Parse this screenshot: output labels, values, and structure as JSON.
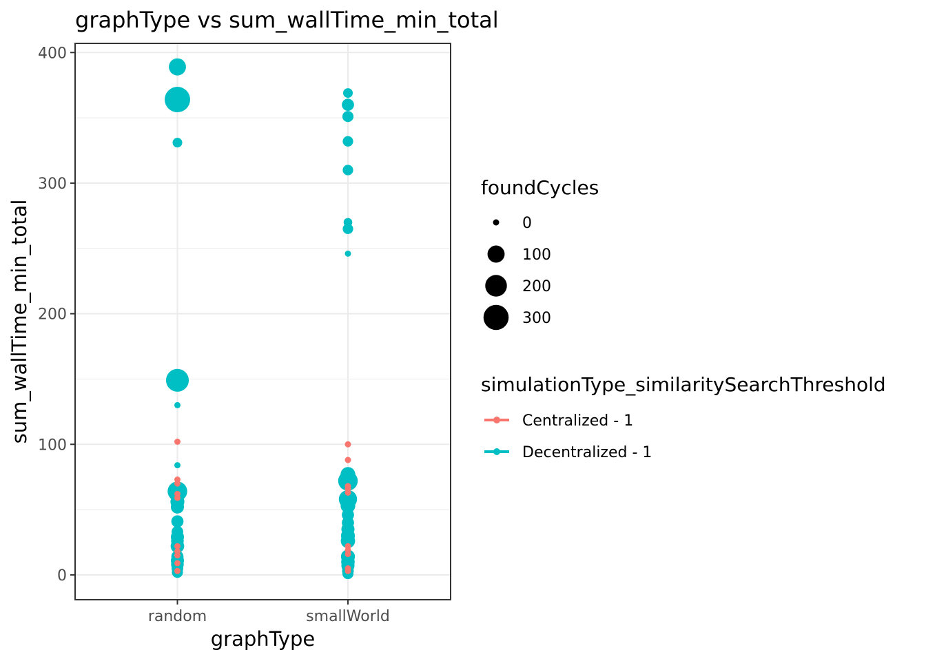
{
  "chart_data": {
    "type": "scatter",
    "title": "graphType  vs  sum_wallTime_min_total",
    "xlabel": "graphType",
    "ylabel": "sum_wallTime_min_total",
    "categories": [
      "random",
      "smallWorld"
    ],
    "ylim": [
      -19,
      407
    ],
    "yticks": [
      0,
      100,
      200,
      300,
      400
    ],
    "ytick_labels": [
      "0",
      "100",
      "200",
      "300",
      "400"
    ],
    "grid": true,
    "legend_position": "right",
    "size_legend": {
      "title": "foundCycles",
      "levels": [
        {
          "label": "0",
          "value": 0
        },
        {
          "label": "100",
          "value": 100
        },
        {
          "label": "200",
          "value": 200
        },
        {
          "label": "300",
          "value": 300
        }
      ]
    },
    "color_legend": {
      "title": "simulationType_similaritySearchThreshold"
    },
    "series": [
      {
        "name": "Centralized - 1",
        "color": "#F8766D",
        "points": [
          {
            "x": "random",
            "y": 102,
            "size": 0
          },
          {
            "x": "random",
            "y": 73,
            "size": 0
          },
          {
            "x": "random",
            "y": 70,
            "size": 0
          },
          {
            "x": "random",
            "y": 62,
            "size": 0
          },
          {
            "x": "random",
            "y": 59,
            "size": 0
          },
          {
            "x": "random",
            "y": 22,
            "size": 0
          },
          {
            "x": "random",
            "y": 18,
            "size": 0
          },
          {
            "x": "random",
            "y": 15,
            "size": 0
          },
          {
            "x": "random",
            "y": 9,
            "size": 0
          },
          {
            "x": "random",
            "y": 3,
            "size": 0
          },
          {
            "x": "smallWorld",
            "y": 100,
            "size": 0
          },
          {
            "x": "smallWorld",
            "y": 88,
            "size": 0
          },
          {
            "x": "smallWorld",
            "y": 68,
            "size": 0
          },
          {
            "x": "smallWorld",
            "y": 66,
            "size": 0
          },
          {
            "x": "smallWorld",
            "y": 63,
            "size": 0
          },
          {
            "x": "smallWorld",
            "y": 22,
            "size": 0
          },
          {
            "x": "smallWorld",
            "y": 19,
            "size": 0
          },
          {
            "x": "smallWorld",
            "y": 16,
            "size": 0
          },
          {
            "x": "smallWorld",
            "y": 5,
            "size": 0
          },
          {
            "x": "smallWorld",
            "y": 3,
            "size": 0
          }
        ]
      },
      {
        "name": "Decentralized - 1",
        "color": "#00BFC4",
        "points": [
          {
            "x": "random",
            "y": 389,
            "size": 100
          },
          {
            "x": "random",
            "y": 364,
            "size": 310
          },
          {
            "x": "random",
            "y": 331,
            "size": 10
          },
          {
            "x": "random",
            "y": 149,
            "size": 230
          },
          {
            "x": "random",
            "y": 130,
            "size": 0
          },
          {
            "x": "random",
            "y": 84,
            "size": 0
          },
          {
            "x": "random",
            "y": 64,
            "size": 150
          },
          {
            "x": "random",
            "y": 56,
            "size": 50
          },
          {
            "x": "random",
            "y": 52,
            "size": 40
          },
          {
            "x": "random",
            "y": 41,
            "size": 30
          },
          {
            "x": "random",
            "y": 33,
            "size": 25
          },
          {
            "x": "random",
            "y": 29,
            "size": 40
          },
          {
            "x": "random",
            "y": 26,
            "size": 35
          },
          {
            "x": "random",
            "y": 22,
            "size": 45
          },
          {
            "x": "random",
            "y": 14,
            "size": 30
          },
          {
            "x": "random",
            "y": 11,
            "size": 40
          },
          {
            "x": "random",
            "y": 8,
            "size": 35
          },
          {
            "x": "random",
            "y": 5,
            "size": 25
          },
          {
            "x": "random",
            "y": 2,
            "size": 20
          },
          {
            "x": "smallWorld",
            "y": 369,
            "size": 10
          },
          {
            "x": "smallWorld",
            "y": 360,
            "size": 30
          },
          {
            "x": "smallWorld",
            "y": 351,
            "size": 20
          },
          {
            "x": "smallWorld",
            "y": 332,
            "size": 15
          },
          {
            "x": "smallWorld",
            "y": 310,
            "size": 15
          },
          {
            "x": "smallWorld",
            "y": 270,
            "size": 5
          },
          {
            "x": "smallWorld",
            "y": 265,
            "size": 15
          },
          {
            "x": "smallWorld",
            "y": 246,
            "size": 0
          },
          {
            "x": "smallWorld",
            "y": 77,
            "size": 60
          },
          {
            "x": "smallWorld",
            "y": 72,
            "size": 150
          },
          {
            "x": "smallWorld",
            "y": 58,
            "size": 120
          },
          {
            "x": "smallWorld",
            "y": 53,
            "size": 60
          },
          {
            "x": "smallWorld",
            "y": 46,
            "size": 30
          },
          {
            "x": "smallWorld",
            "y": 40,
            "size": 30
          },
          {
            "x": "smallWorld",
            "y": 35,
            "size": 40
          },
          {
            "x": "smallWorld",
            "y": 30,
            "size": 50
          },
          {
            "x": "smallWorld",
            "y": 26,
            "size": 55
          },
          {
            "x": "smallWorld",
            "y": 14,
            "size": 50
          },
          {
            "x": "smallWorld",
            "y": 10,
            "size": 45
          },
          {
            "x": "smallWorld",
            "y": 7,
            "size": 40
          },
          {
            "x": "smallWorld",
            "y": 3,
            "size": 25
          },
          {
            "x": "smallWorld",
            "y": 1,
            "size": 20
          }
        ]
      }
    ]
  }
}
